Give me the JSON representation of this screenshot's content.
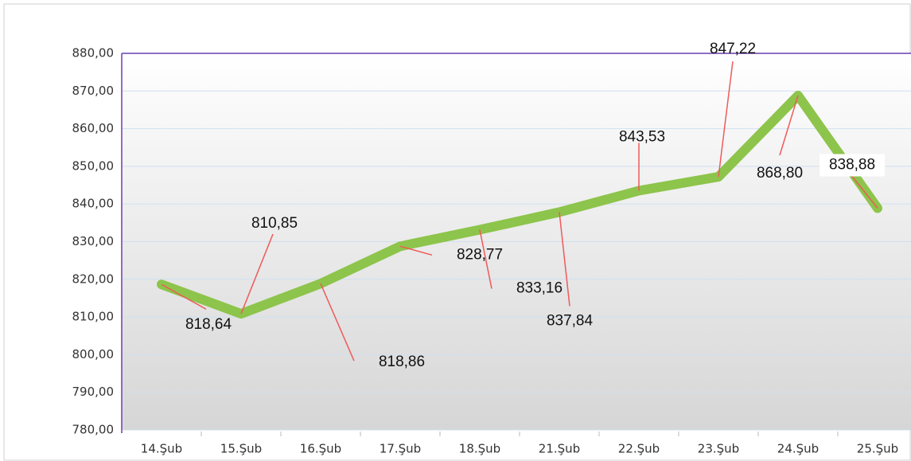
{
  "chart_data": {
    "type": "line",
    "categories": [
      "14.Şub",
      "15.Şub",
      "16.Şub",
      "17.Şub",
      "18.Şub",
      "21.Şub",
      "22.Şub",
      "23.Şub",
      "24.Şub",
      "25.Şub"
    ],
    "values": [
      818.64,
      810.85,
      818.86,
      828.77,
      833.16,
      837.84,
      843.53,
      847.22,
      868.8,
      838.88
    ],
    "value_labels": [
      "818,64",
      "810,85",
      "818,86",
      "828,77",
      "833,16",
      "837,84",
      "843,53",
      "847,22",
      "868,80",
      "838,88"
    ],
    "color": "#8dc44b",
    "ylim": [
      780,
      880
    ],
    "yticks": [
      {
        "value": 780,
        "label": "780,00"
      },
      {
        "value": 790,
        "label": "790,00"
      },
      {
        "value": 800,
        "label": "800,00"
      },
      {
        "value": 810,
        "label": "810,00"
      },
      {
        "value": 820,
        "label": "820,00"
      },
      {
        "value": 830,
        "label": "830,00"
      },
      {
        "value": 840,
        "label": "840,00"
      },
      {
        "value": 850,
        "label": "850,00"
      },
      {
        "value": 860,
        "label": "860,00"
      },
      {
        "value": 870,
        "label": "870,00"
      },
      {
        "value": 880,
        "label": "880,00"
      }
    ],
    "grid": true
  }
}
